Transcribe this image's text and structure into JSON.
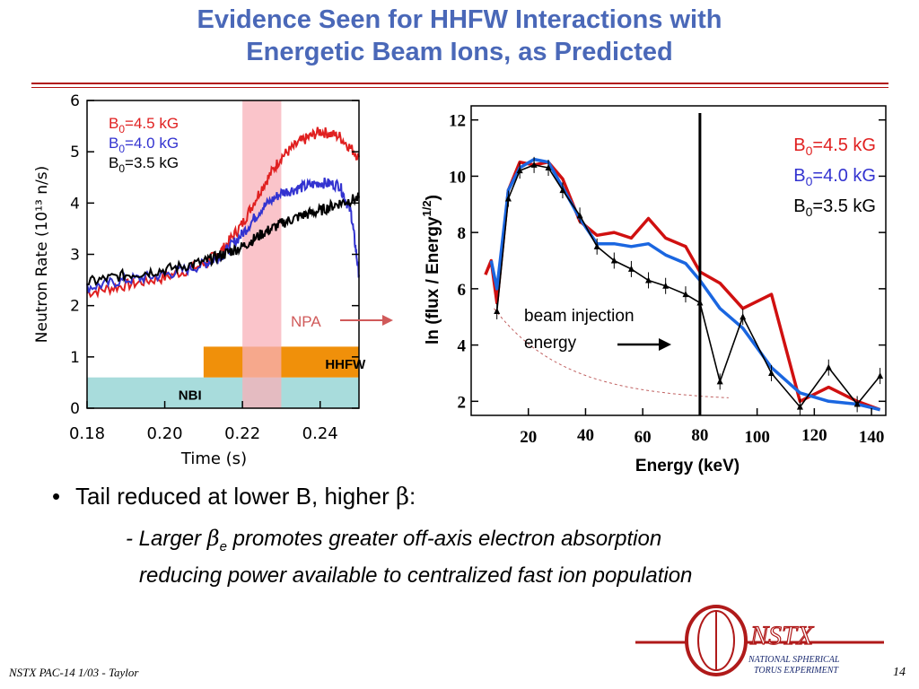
{
  "title_line1": "Evidence Seen for HHFW Interactions with",
  "title_line2": "Energetic Beam Ions, as Predicted",
  "bullet": {
    "marker": "•",
    "text_pre": "Tail reduced at lower B, higher ",
    "beta": "β",
    "text_post": ":",
    "sub1_pre": "- Larger ",
    "sub1_beta": "β",
    "sub1_sub": "e",
    "sub1_post": " promotes greater off-axis electron absorption",
    "sub2": "reducing power available to centralized fast ion population"
  },
  "footer": "NSTX PAC-14 1/03 - Taylor",
  "page_number": "14",
  "logo": {
    "name": "NSTX",
    "line1": "National Spherical",
    "line2": "Torus Experiment"
  },
  "colors": {
    "title": "#4a68b8",
    "red": "#e02020",
    "blue": "#3333d0",
    "npa_pink": "#d05a5a",
    "shade_pink": "#f8b0b8",
    "hhfw_orange": "#f0900a",
    "nbi_cyan": "#a8dcdc"
  },
  "chart_data": [
    {
      "type": "line",
      "xlabel": "Time  (s)",
      "ylabel": "Neutron  Rate  (10¹³ n/s)",
      "xlim": [
        0.18,
        0.25
      ],
      "ylim": [
        0,
        6
      ],
      "xticks": [
        "0.18",
        "0.20",
        "0.22",
        "0.24"
      ],
      "yticks": [
        "0",
        "1",
        "2",
        "3",
        "4",
        "5",
        "6"
      ],
      "legend": [
        {
          "label": "B",
          "sub": "0",
          "value": "=4.5 kG",
          "color": "#e02020"
        },
        {
          "label": "B",
          "sub": "0",
          "value": "=4.0 kG",
          "color": "#3333d0"
        },
        {
          "label": "B",
          "sub": "0",
          "value": "=3.5 kG",
          "color": "#000000"
        }
      ],
      "legend_placement": "top-left",
      "shaded_window": [
        0.22,
        0.23
      ],
      "bars": [
        {
          "label": "HHFW",
          "start": 0.21,
          "end": 0.25,
          "color": "#f0900a"
        },
        {
          "label": "NBI",
          "start": 0.18,
          "end": 0.25,
          "color": "#a8dcdc"
        }
      ],
      "annotation": "NPA",
      "series": [
        {
          "color": "#e02020",
          "x": [
            0.18,
            0.19,
            0.2,
            0.21,
            0.215,
            0.22,
            0.225,
            0.23,
            0.235,
            0.24,
            0.245,
            0.25
          ],
          "y": [
            2.25,
            2.4,
            2.55,
            2.8,
            3.1,
            3.6,
            4.3,
            4.9,
            5.2,
            5.4,
            5.3,
            4.9
          ]
        },
        {
          "color": "#3333d0",
          "x": [
            0.18,
            0.19,
            0.2,
            0.21,
            0.215,
            0.22,
            0.225,
            0.23,
            0.235,
            0.24,
            0.245,
            0.248,
            0.25
          ],
          "y": [
            2.35,
            2.5,
            2.6,
            2.8,
            3.0,
            3.4,
            3.9,
            4.2,
            4.3,
            4.4,
            4.35,
            3.8,
            2.6
          ]
        },
        {
          "color": "#000000",
          "x": [
            0.18,
            0.19,
            0.2,
            0.21,
            0.215,
            0.22,
            0.225,
            0.23,
            0.235,
            0.24,
            0.245,
            0.25
          ],
          "y": [
            2.45,
            2.6,
            2.7,
            2.85,
            3.0,
            3.15,
            3.4,
            3.6,
            3.75,
            3.85,
            4.0,
            4.1
          ]
        }
      ]
    },
    {
      "type": "line",
      "xlabel": "Energy (keV)",
      "ylabel": "ln (flux / Energy",
      "ylabel_sup": "1/2",
      "ylabel_end": ")",
      "xlim": [
        0,
        145
      ],
      "ylim": [
        1.5,
        12.5
      ],
      "xticks": [
        "20",
        "40",
        "60",
        "80",
        "100",
        "120",
        "140"
      ],
      "yticks": [
        "2",
        "4",
        "6",
        "8",
        "10",
        "12"
      ],
      "legend": [
        {
          "label": "B",
          "sub": "0",
          "value": "=4.5 kG",
          "color": "#e02020"
        },
        {
          "label": "B",
          "sub": "0",
          "value": "=4.0 kG",
          "color": "#3333d0"
        },
        {
          "label": "B",
          "sub": "0",
          "value": "=3.5 kG",
          "color": "#000000"
        }
      ],
      "legend_placement": "top-right",
      "beam_injection_energy": 80,
      "annotation": "beam injection\nenergy",
      "annotation_line1": "beam injection",
      "annotation_line2": "energy",
      "series": [
        {
          "color": "#d01010",
          "x": [
            5,
            7,
            9,
            13,
            17,
            22,
            27,
            32,
            38,
            44,
            50,
            56,
            62,
            68,
            75,
            80,
            87,
            95,
            105,
            115,
            125,
            135,
            143
          ],
          "y": [
            6.5,
            7.0,
            5.5,
            9.5,
            10.5,
            10.4,
            10.5,
            9.9,
            8.4,
            7.9,
            8.0,
            7.8,
            8.5,
            7.8,
            7.5,
            6.6,
            6.2,
            5.3,
            5.8,
            2.0,
            2.5,
            2.0,
            1.7
          ]
        },
        {
          "color": "#1a66e0",
          "x": [
            7,
            9,
            13,
            17,
            22,
            27,
            32,
            38,
            44,
            50,
            56,
            62,
            68,
            75,
            80,
            87,
            95,
            105,
            115,
            125,
            135,
            143
          ],
          "y": [
            7.0,
            6.0,
            9.5,
            10.3,
            10.6,
            10.5,
            9.6,
            8.5,
            7.6,
            7.6,
            7.5,
            7.6,
            7.2,
            6.9,
            6.3,
            5.3,
            4.6,
            3.2,
            2.3,
            2.0,
            1.9,
            1.7
          ]
        },
        {
          "color": "#000000",
          "x": [
            9,
            13,
            17,
            22,
            27,
            32,
            38,
            44,
            50,
            56,
            62,
            68,
            75,
            80,
            87,
            95,
            105,
            115,
            125,
            135,
            143
          ],
          "y": [
            5.2,
            9.2,
            10.2,
            10.4,
            10.3,
            9.5,
            8.6,
            7.5,
            7.0,
            6.7,
            6.3,
            6.1,
            5.8,
            5.5,
            2.7,
            5.0,
            3.0,
            1.8,
            3.2,
            1.9,
            2.9
          ]
        }
      ]
    }
  ]
}
